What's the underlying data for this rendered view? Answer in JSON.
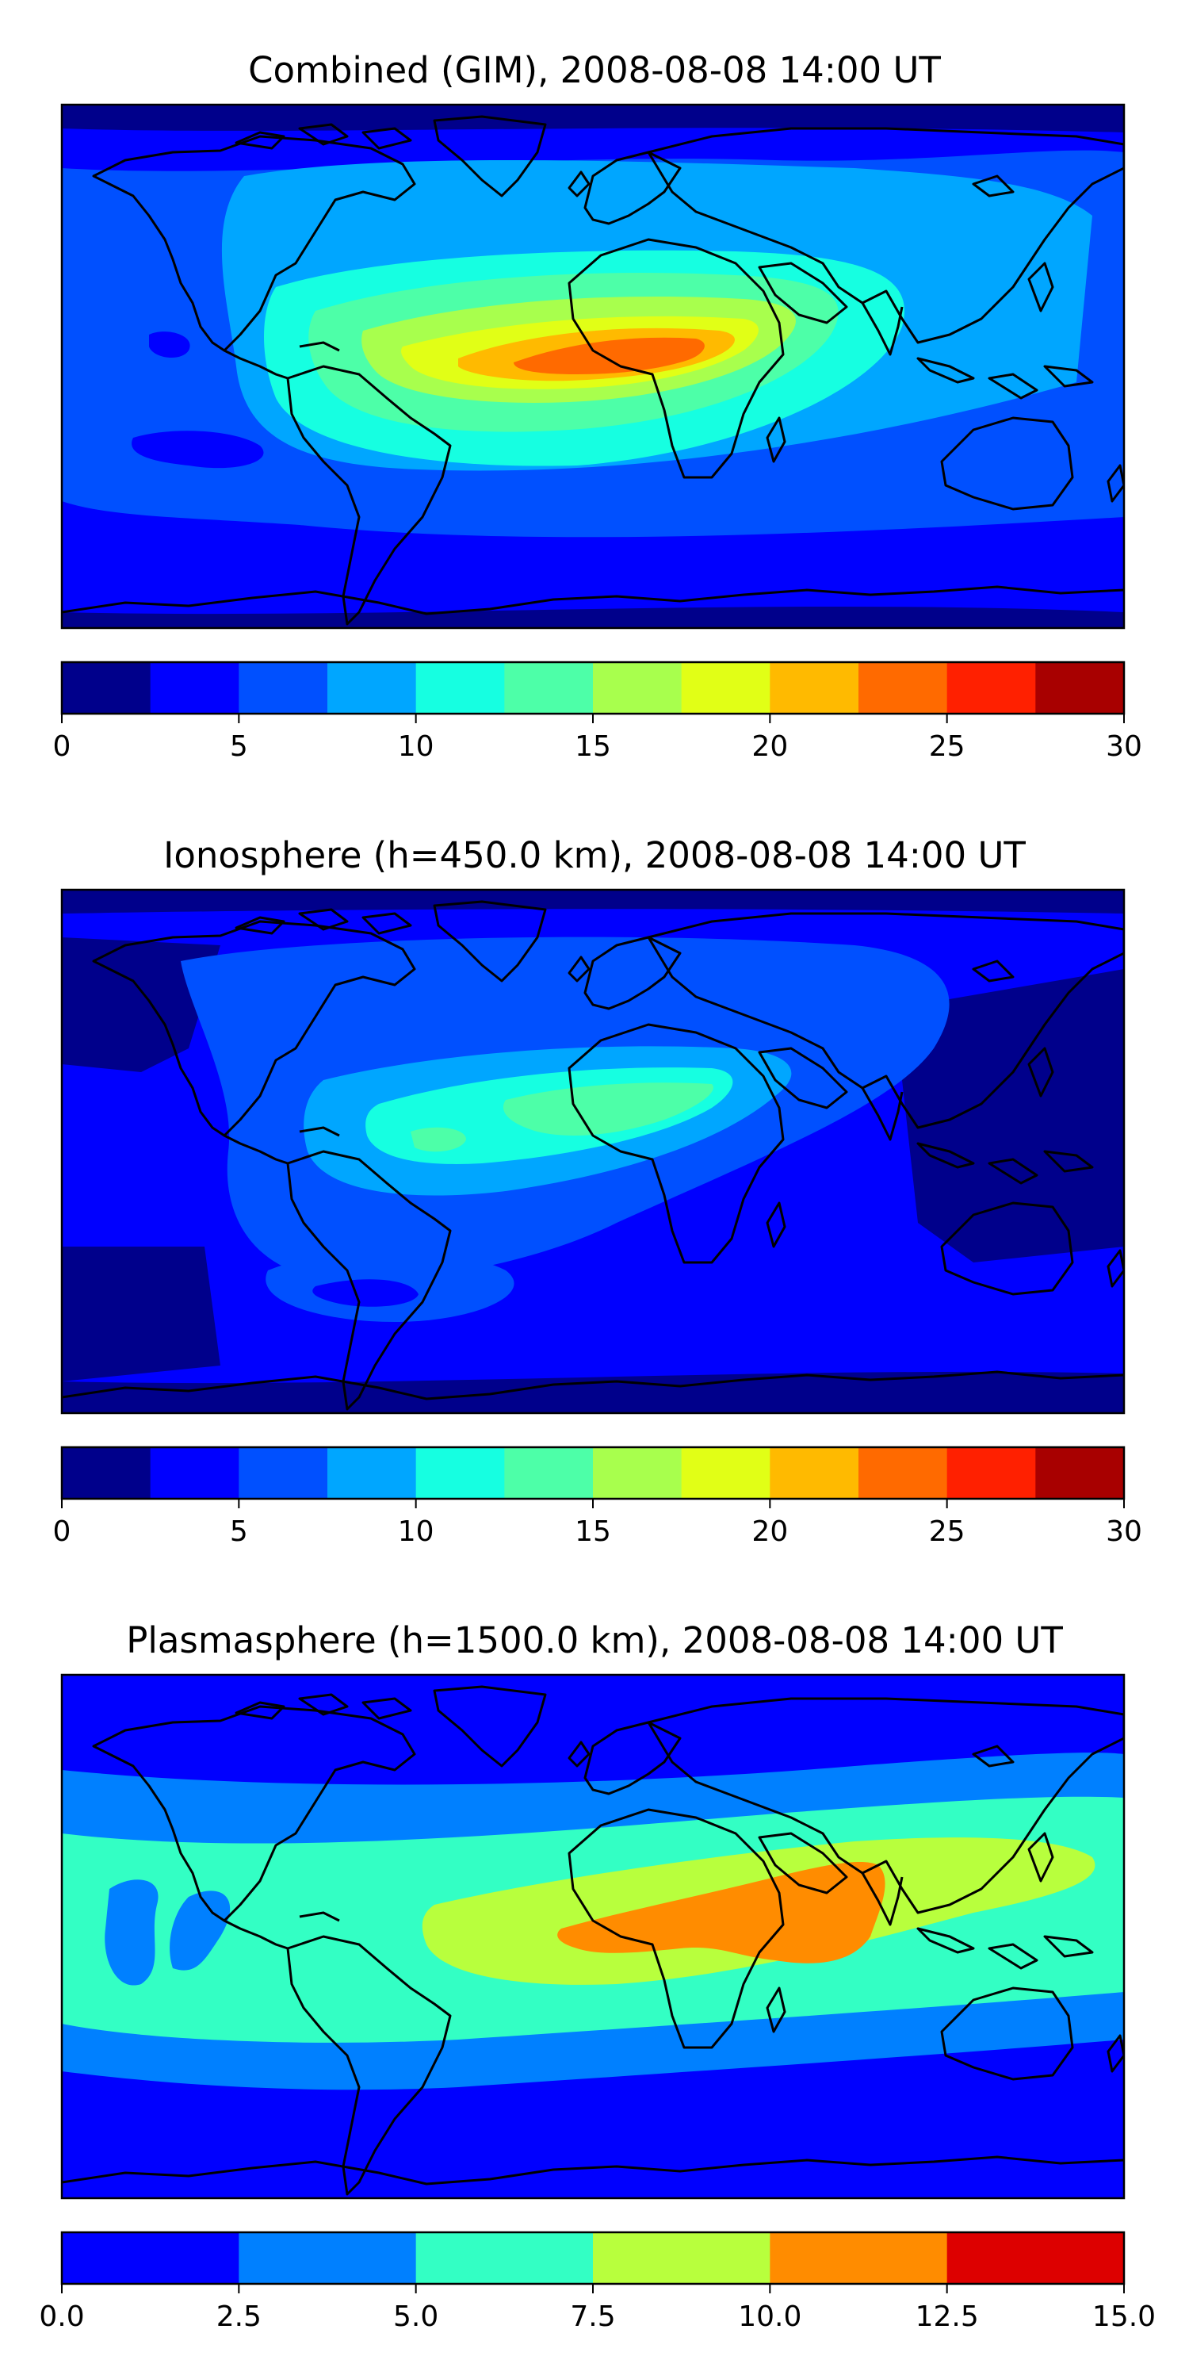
{
  "panels": [
    {
      "id": "combined",
      "title": "Combined (GIM), 2008-08-08 14:00 UT",
      "colorbar": {
        "ticks": [
          "0",
          "5",
          "10",
          "15",
          "20",
          "25",
          "30"
        ],
        "vmin": 0,
        "vmax": 30,
        "step": 2.5,
        "colors": [
          "#00008b",
          "#0000ff",
          "#0050ff",
          "#00a6ff",
          "#16ffe1",
          "#4dffa8",
          "#a8ff4d",
          "#e1ff16",
          "#ffba00",
          "#ff6a00",
          "#ff2000",
          "#a80000"
        ]
      }
    },
    {
      "id": "ionosphere",
      "title": "Ionosphere  (h=450.0 km), 2008-08-08 14:00 UT",
      "colorbar": {
        "ticks": [
          "0",
          "5",
          "10",
          "15",
          "20",
          "25",
          "30"
        ],
        "vmin": 0,
        "vmax": 30,
        "step": 2.5,
        "colors": [
          "#00008b",
          "#0000ff",
          "#0050ff",
          "#00a6ff",
          "#16ffe1",
          "#4dffa8",
          "#a8ff4d",
          "#e1ff16",
          "#ffba00",
          "#ff6a00",
          "#ff2000",
          "#a80000"
        ]
      }
    },
    {
      "id": "plasmasphere",
      "title": "Plasmasphere (h=1500.0 km), 2008-08-08 14:00 UT",
      "colorbar": {
        "ticks": [
          "0.0",
          "2.5",
          "5.0",
          "7.5",
          "10.0",
          "12.5",
          "15.0"
        ],
        "vmin": 0,
        "vmax": 15,
        "step": 2.5,
        "colors": [
          "#0000ff",
          "#0080ff",
          "#33ffc4",
          "#b8ff3d",
          "#ff8c00",
          "#dd0000"
        ]
      }
    }
  ]
}
